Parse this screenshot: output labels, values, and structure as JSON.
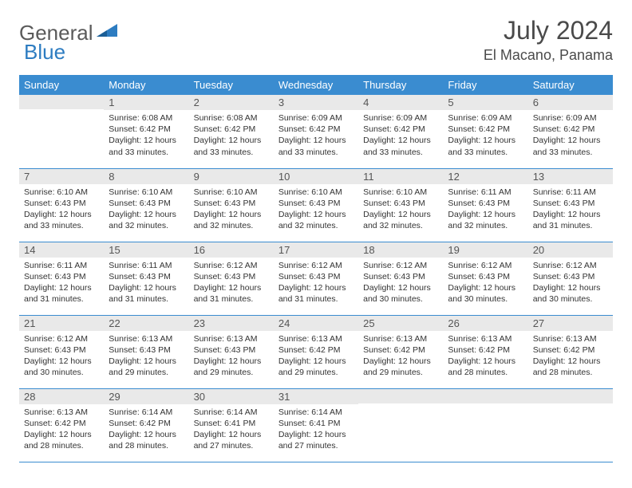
{
  "logo": {
    "word1": "General",
    "word2": "Blue"
  },
  "title": "July 2024",
  "subtitle": "El Macano, Panama",
  "headers": [
    "Sunday",
    "Monday",
    "Tuesday",
    "Wednesday",
    "Thursday",
    "Friday",
    "Saturday"
  ],
  "colors": {
    "header_bg": "#3a8cd0",
    "header_fg": "#ffffff",
    "daynum_bg": "#e9e9e9",
    "border": "#3a8cd0",
    "text": "#333333",
    "logo_gray": "#5a5a5a",
    "logo_blue": "#2d7cc1"
  },
  "typography": {
    "title_fontsize": 32,
    "subtitle_fontsize": 18,
    "logo_fontsize": 26,
    "th_fontsize": 13,
    "daynum_fontsize": 13,
    "body_fontsize": 10.5
  },
  "weeks": [
    [
      {
        "n": "",
        "sr": "",
        "ss": "",
        "dl": ""
      },
      {
        "n": "1",
        "sr": "6:08 AM",
        "ss": "6:42 PM",
        "dl": "12 hours and 33 minutes."
      },
      {
        "n": "2",
        "sr": "6:08 AM",
        "ss": "6:42 PM",
        "dl": "12 hours and 33 minutes."
      },
      {
        "n": "3",
        "sr": "6:09 AM",
        "ss": "6:42 PM",
        "dl": "12 hours and 33 minutes."
      },
      {
        "n": "4",
        "sr": "6:09 AM",
        "ss": "6:42 PM",
        "dl": "12 hours and 33 minutes."
      },
      {
        "n": "5",
        "sr": "6:09 AM",
        "ss": "6:42 PM",
        "dl": "12 hours and 33 minutes."
      },
      {
        "n": "6",
        "sr": "6:09 AM",
        "ss": "6:42 PM",
        "dl": "12 hours and 33 minutes."
      }
    ],
    [
      {
        "n": "7",
        "sr": "6:10 AM",
        "ss": "6:43 PM",
        "dl": "12 hours and 33 minutes."
      },
      {
        "n": "8",
        "sr": "6:10 AM",
        "ss": "6:43 PM",
        "dl": "12 hours and 32 minutes."
      },
      {
        "n": "9",
        "sr": "6:10 AM",
        "ss": "6:43 PM",
        "dl": "12 hours and 32 minutes."
      },
      {
        "n": "10",
        "sr": "6:10 AM",
        "ss": "6:43 PM",
        "dl": "12 hours and 32 minutes."
      },
      {
        "n": "11",
        "sr": "6:10 AM",
        "ss": "6:43 PM",
        "dl": "12 hours and 32 minutes."
      },
      {
        "n": "12",
        "sr": "6:11 AM",
        "ss": "6:43 PM",
        "dl": "12 hours and 32 minutes."
      },
      {
        "n": "13",
        "sr": "6:11 AM",
        "ss": "6:43 PM",
        "dl": "12 hours and 31 minutes."
      }
    ],
    [
      {
        "n": "14",
        "sr": "6:11 AM",
        "ss": "6:43 PM",
        "dl": "12 hours and 31 minutes."
      },
      {
        "n": "15",
        "sr": "6:11 AM",
        "ss": "6:43 PM",
        "dl": "12 hours and 31 minutes."
      },
      {
        "n": "16",
        "sr": "6:12 AM",
        "ss": "6:43 PM",
        "dl": "12 hours and 31 minutes."
      },
      {
        "n": "17",
        "sr": "6:12 AM",
        "ss": "6:43 PM",
        "dl": "12 hours and 31 minutes."
      },
      {
        "n": "18",
        "sr": "6:12 AM",
        "ss": "6:43 PM",
        "dl": "12 hours and 30 minutes."
      },
      {
        "n": "19",
        "sr": "6:12 AM",
        "ss": "6:43 PM",
        "dl": "12 hours and 30 minutes."
      },
      {
        "n": "20",
        "sr": "6:12 AM",
        "ss": "6:43 PM",
        "dl": "12 hours and 30 minutes."
      }
    ],
    [
      {
        "n": "21",
        "sr": "6:12 AM",
        "ss": "6:43 PM",
        "dl": "12 hours and 30 minutes."
      },
      {
        "n": "22",
        "sr": "6:13 AM",
        "ss": "6:43 PM",
        "dl": "12 hours and 29 minutes."
      },
      {
        "n": "23",
        "sr": "6:13 AM",
        "ss": "6:43 PM",
        "dl": "12 hours and 29 minutes."
      },
      {
        "n": "24",
        "sr": "6:13 AM",
        "ss": "6:42 PM",
        "dl": "12 hours and 29 minutes."
      },
      {
        "n": "25",
        "sr": "6:13 AM",
        "ss": "6:42 PM",
        "dl": "12 hours and 29 minutes."
      },
      {
        "n": "26",
        "sr": "6:13 AM",
        "ss": "6:42 PM",
        "dl": "12 hours and 28 minutes."
      },
      {
        "n": "27",
        "sr": "6:13 AM",
        "ss": "6:42 PM",
        "dl": "12 hours and 28 minutes."
      }
    ],
    [
      {
        "n": "28",
        "sr": "6:13 AM",
        "ss": "6:42 PM",
        "dl": "12 hours and 28 minutes."
      },
      {
        "n": "29",
        "sr": "6:14 AM",
        "ss": "6:42 PM",
        "dl": "12 hours and 28 minutes."
      },
      {
        "n": "30",
        "sr": "6:14 AM",
        "ss": "6:41 PM",
        "dl": "12 hours and 27 minutes."
      },
      {
        "n": "31",
        "sr": "6:14 AM",
        "ss": "6:41 PM",
        "dl": "12 hours and 27 minutes."
      },
      {
        "n": "",
        "sr": "",
        "ss": "",
        "dl": ""
      },
      {
        "n": "",
        "sr": "",
        "ss": "",
        "dl": ""
      },
      {
        "n": "",
        "sr": "",
        "ss": "",
        "dl": ""
      }
    ]
  ],
  "labels": {
    "sunrise": "Sunrise:",
    "sunset": "Sunset:",
    "daylight": "Daylight:"
  }
}
